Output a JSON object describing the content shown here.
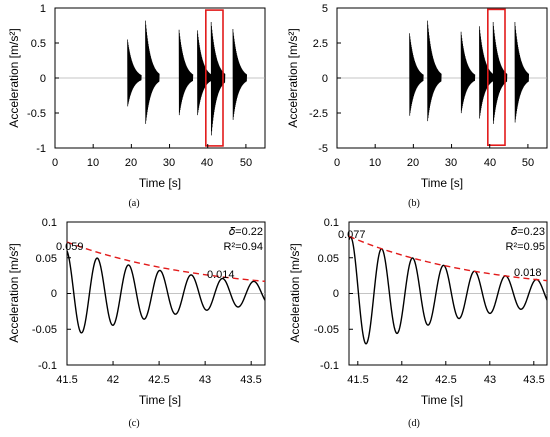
{
  "chart_data": [
    {
      "panel": "(a)",
      "type": "line",
      "xlabel": "Time [s]",
      "ylabel": "Acceleration [m/s²]",
      "xlim": [
        0,
        55
      ],
      "ylim": [
        -1,
        1
      ],
      "xticks": [
        "0",
        "10",
        "20",
        "30",
        "40",
        "50"
      ],
      "yticks": [
        "1",
        "0.5",
        "0",
        "-0.5",
        "-1"
      ],
      "grid": "zero-line",
      "impulses": [
        {
          "t": 19.0,
          "pos": 0.55,
          "neg": -0.42
        },
        {
          "t": 23.7,
          "pos": 0.82,
          "neg": -0.68
        },
        {
          "t": 32.5,
          "pos": 0.69,
          "neg": -0.55
        },
        {
          "t": 37.3,
          "pos": 0.68,
          "neg": -0.55
        },
        {
          "t": 40.9,
          "pos": 0.8,
          "neg": -0.85
        },
        {
          "t": 46.6,
          "pos": 0.7,
          "neg": -0.62
        }
      ],
      "highlight_box": {
        "x": [
          39.5,
          44.0
        ],
        "y": [
          -0.97,
          0.97
        ],
        "color": "#e21b1b"
      }
    },
    {
      "panel": "(b)",
      "type": "line",
      "xlabel": "Time [s]",
      "ylabel": "Acceleration [m/s²]",
      "xlim": [
        0,
        55
      ],
      "ylim": [
        -5,
        5
      ],
      "xticks": [
        "0",
        "10",
        "20",
        "30",
        "40",
        "50"
      ],
      "yticks": [
        "5",
        "2.5",
        "0",
        "-2.5",
        "-5"
      ],
      "grid": "zero-line",
      "impulses": [
        {
          "t": 19.0,
          "pos": 3.2,
          "neg": -2.8
        },
        {
          "t": 23.7,
          "pos": 4.1,
          "neg": -3.2
        },
        {
          "t": 32.5,
          "pos": 3.3,
          "neg": -2.6
        },
        {
          "t": 37.3,
          "pos": 3.7,
          "neg": -3.0
        },
        {
          "t": 40.9,
          "pos": 4.0,
          "neg": -3.4
        },
        {
          "t": 46.6,
          "pos": 4.0,
          "neg": -3.3
        }
      ],
      "highlight_box": {
        "x": [
          39.5,
          44.0
        ],
        "y": [
          -4.8,
          4.9
        ],
        "color": "#e21b1b"
      }
    },
    {
      "panel": "(c)",
      "type": "line",
      "xlabel": "Time [s]",
      "ylabel": "Acceleration [m/s²]",
      "xlim": [
        41.5,
        43.65
      ],
      "ylim": [
        -0.1,
        0.1
      ],
      "xticks": [
        "41.5",
        "42",
        "42.5",
        "43",
        "43.5"
      ],
      "yticks": [
        "0.1",
        "0.05",
        "0",
        "-0.05",
        "-0.1"
      ],
      "signal": {
        "t0": 41.47,
        "freq": 2.94,
        "amplitude0": 0.062,
        "damping": 0.63
      },
      "envelope": {
        "from": [
          41.5,
          0.072
        ],
        "to": [
          43.65,
          0.017
        ],
        "color": "#e21b1b",
        "style": "dashed"
      },
      "annotations": [
        "0.059",
        "0.014"
      ],
      "delta_label": "𝛿=0.22",
      "r2_label": "R²=0.94"
    },
    {
      "panel": "(d)",
      "type": "line",
      "xlabel": "Time [s]",
      "ylabel": "Acceleration [m/s²]",
      "xlim": [
        41.4,
        43.65
      ],
      "ylim": [
        -0.1,
        0.1
      ],
      "xticks": [
        "41.5",
        "42",
        "42.5",
        "43",
        "43.5"
      ],
      "yticks": [
        "0.1",
        "0.05",
        "0",
        "-0.05",
        "-0.1"
      ],
      "signal": {
        "t0": 41.4,
        "freq": 2.84,
        "amplitude0": 0.08,
        "damping": 0.66
      },
      "envelope": {
        "from": [
          41.4,
          0.08
        ],
        "to": [
          43.65,
          0.018
        ],
        "color": "#e21b1b",
        "style": "dashed"
      },
      "annotations": [
        "0.077",
        "0.018"
      ],
      "delta_label": "𝛿=0.23",
      "r2_label": "R²=0.95"
    }
  ]
}
